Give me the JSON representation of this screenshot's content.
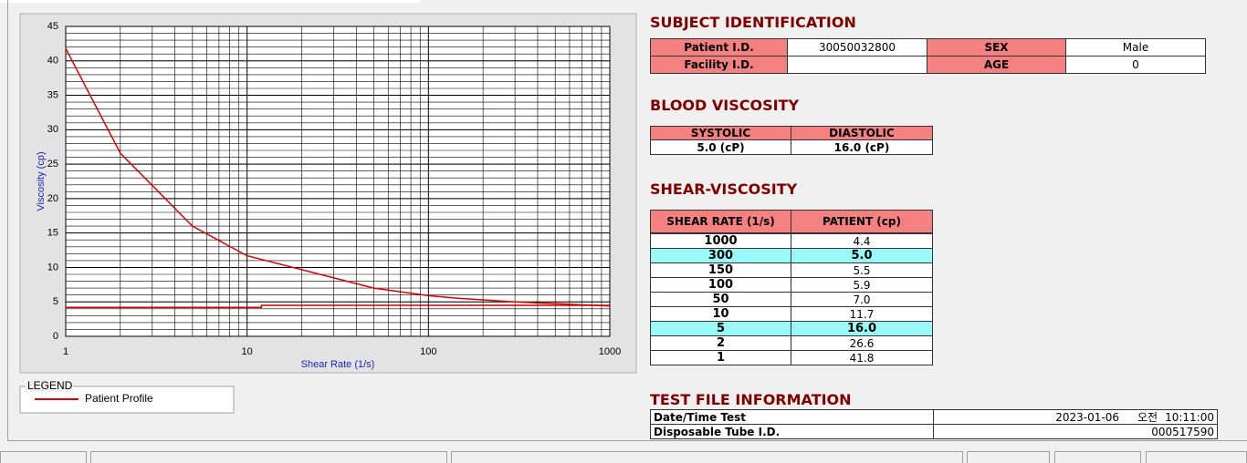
{
  "chart_data": {
    "type": "line",
    "xlabel": "Shear Rate (1/s)",
    "ylabel": "Viscosity (cp)",
    "xscale": "log",
    "xlim": [
      1,
      1000
    ],
    "ylim": [
      0,
      45
    ],
    "xticks": [
      1,
      10,
      100,
      1000
    ],
    "yticks": [
      0,
      5,
      10,
      15,
      20,
      25,
      30,
      35,
      40,
      45
    ],
    "grid": true,
    "legend_title": "LEGEND",
    "series": [
      {
        "name": "Patient Profile",
        "color": "#e00000",
        "x": [
          1,
          2,
          5,
          10,
          50,
          100,
          150,
          300,
          1000
        ],
        "values": [
          41.8,
          26.6,
          16.0,
          11.7,
          7.0,
          5.9,
          5.5,
          5.0,
          4.4
        ]
      },
      {
        "color": "#d00000",
        "x": [
          1,
          12,
          12,
          1000
        ],
        "values": [
          4.2,
          4.2,
          4.5,
          4.5
        ]
      }
    ]
  },
  "subject_identification": {
    "title": "SUBJECT IDENTIFICATION",
    "rows": [
      [
        "Patient I.D.",
        "30050032800",
        "SEX",
        "Male"
      ],
      [
        "Facility I.D.",
        null,
        "AGE",
        "0"
      ]
    ]
  },
  "blood_viscosity": {
    "title": "BLOOD VISCOSITY",
    "header": [
      "SYSTOLIC",
      "DIASTOLIC"
    ],
    "values": [
      "5.0 (cP)",
      "16.0 (cP)"
    ]
  },
  "shear_viscosity": {
    "title": "SHEAR-VISCOSITY",
    "header": [
      "SHEAR RATE (1/s)",
      "PATIENT (cp)"
    ],
    "rows": [
      [
        "1000",
        "4.4"
      ],
      [
        "300",
        "5.0"
      ],
      [
        "150",
        "5.5"
      ],
      [
        "100",
        "5.9"
      ],
      [
        "50",
        "7.0"
      ],
      [
        "10",
        "11.7"
      ],
      [
        "5",
        "16.0"
      ],
      [
        "2",
        "26.6"
      ],
      [
        "1",
        "41.8"
      ]
    ],
    "highlighted_rows": [
      1,
      6
    ],
    "highlight_color": "#99f8f8"
  },
  "test_file_information": {
    "title": "TEST FILE INFORMATION",
    "rows": [
      [
        "Date/Time Test",
        "2023-01-06",
        "오전",
        "10:11:00"
      ],
      [
        "Disposable Tube I.D.",
        "000517590"
      ]
    ]
  }
}
